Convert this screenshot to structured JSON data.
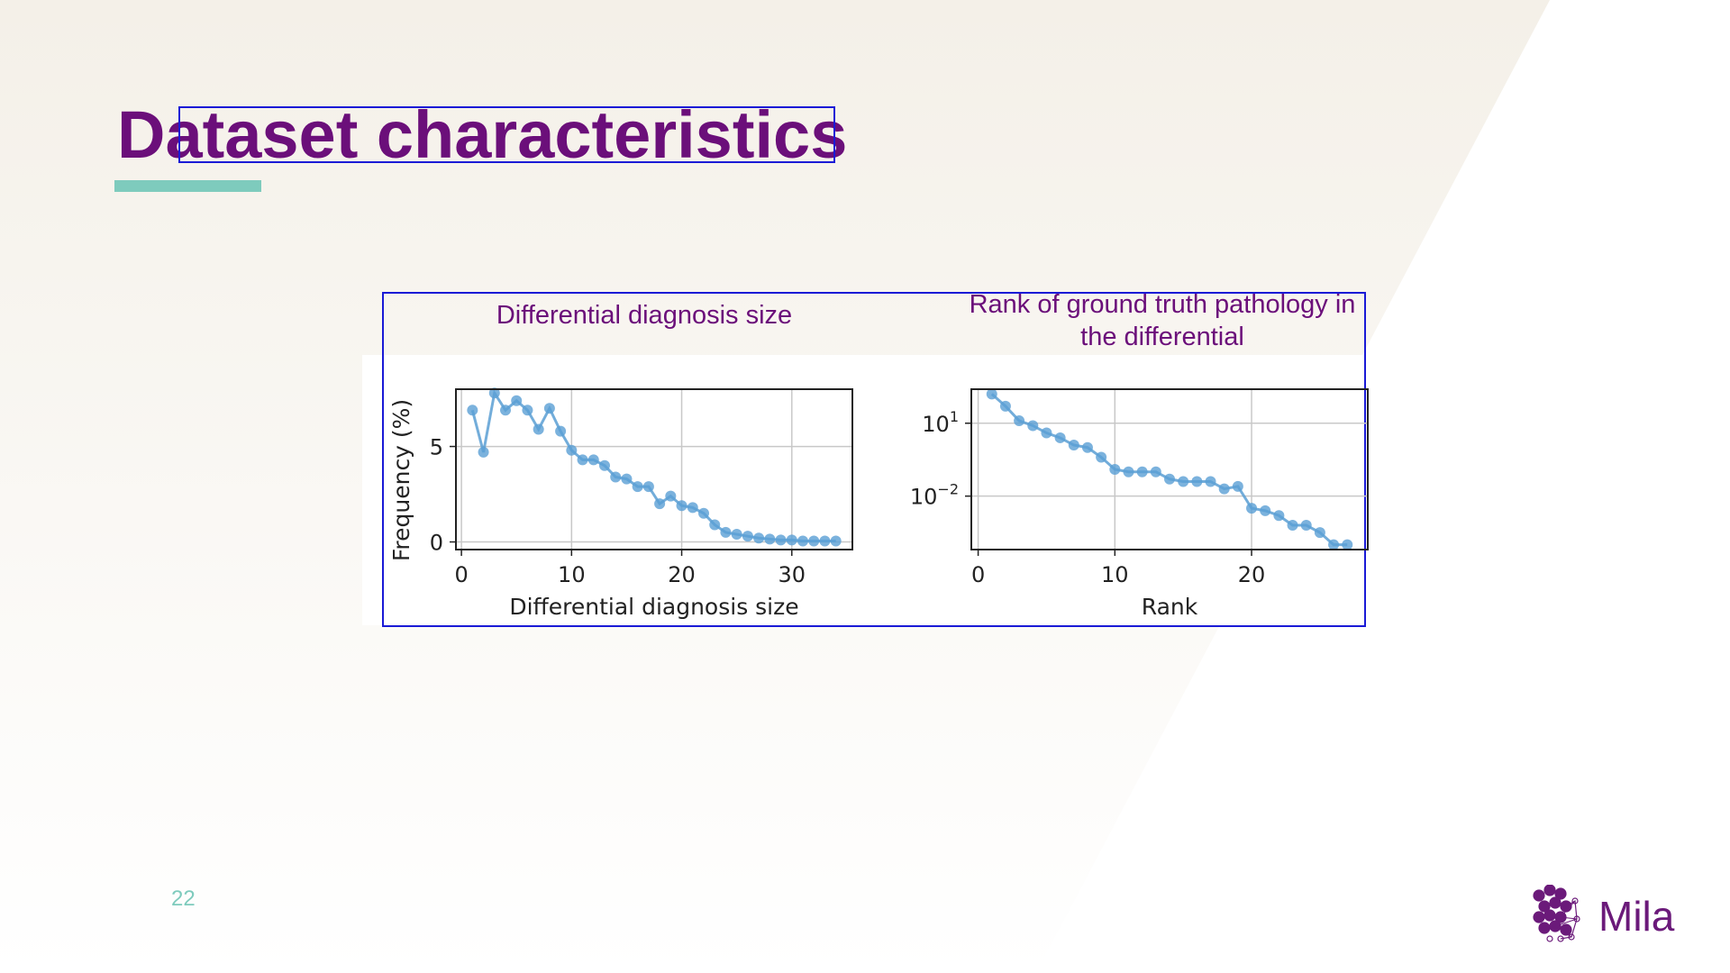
{
  "slide": {
    "title": "Dataset characteristics",
    "page_number": "22",
    "logo_text": "Mila"
  },
  "colors": {
    "title": "#6b0f7a",
    "caption": "#6b0f7a",
    "accent_rule": "#7ecbbd",
    "page_number": "#7ecbbd",
    "highlight_box": "#1a1ad6",
    "series": "#5a9fd4",
    "logo": "#6b1a7a"
  },
  "icons": {
    "logo": "mila-dots-logo-icon"
  },
  "chart_data": [
    {
      "type": "line",
      "caption": "Differential diagnosis size",
      "xlabel": "Differential diagnosis size",
      "ylabel": "Frequency (%)",
      "xlim": [
        -0.5,
        35.5
      ],
      "ylim": [
        -0.4,
        8.0
      ],
      "xticks": [
        0,
        10,
        20,
        30
      ],
      "xtick_labels": [
        "0",
        "10",
        "20",
        "30"
      ],
      "yticks": [
        0,
        5
      ],
      "ytick_labels": [
        "0",
        "5"
      ],
      "grid": true,
      "x": [
        1,
        2,
        3,
        4,
        5,
        6,
        7,
        8,
        9,
        10,
        11,
        12,
        13,
        14,
        15,
        16,
        17,
        18,
        19,
        20,
        21,
        22,
        23,
        24,
        25,
        26,
        27,
        28,
        29,
        30,
        31,
        32,
        33,
        34
      ],
      "y": [
        6.9,
        4.7,
        7.8,
        6.9,
        7.4,
        6.9,
        5.9,
        7.0,
        5.8,
        4.8,
        4.3,
        4.3,
        4.0,
        3.4,
        3.3,
        2.9,
        2.9,
        2.0,
        2.4,
        1.9,
        1.8,
        1.5,
        0.9,
        0.5,
        0.4,
        0.3,
        0.2,
        0.15,
        0.1,
        0.1,
        0.05,
        0.05,
        0.05,
        0.05
      ]
    },
    {
      "type": "line",
      "caption": "Rank of ground truth pathology in the differential",
      "xlabel": "Rank",
      "ylabel": "",
      "yscale": "log",
      "xlim": [
        -0.5,
        28.5
      ],
      "ylim_log10": [
        -4.2,
        2.4
      ],
      "xticks": [
        0,
        10,
        20
      ],
      "xtick_labels": [
        "0",
        "10",
        "20"
      ],
      "yticks_log10": [
        1,
        -2
      ],
      "ytick_bases": [
        "10",
        "10"
      ],
      "ytick_exponents": [
        "1",
        "−2"
      ],
      "grid": true,
      "x": [
        1,
        2,
        3,
        4,
        5,
        6,
        7,
        8,
        9,
        10,
        11,
        12,
        13,
        14,
        15,
        16,
        17,
        18,
        19,
        20,
        21,
        22,
        23,
        24,
        25,
        26,
        27
      ],
      "y_log10": [
        2.2,
        1.7,
        1.1,
        0.9,
        0.6,
        0.4,
        0.1,
        0.0,
        -0.4,
        -0.9,
        -1.0,
        -1.0,
        -1.0,
        -1.3,
        -1.4,
        -1.4,
        -1.4,
        -1.7,
        -1.6,
        -2.5,
        -2.6,
        -2.8,
        -3.2,
        -3.2,
        -3.5,
        -4.0,
        -4.0
      ]
    }
  ]
}
